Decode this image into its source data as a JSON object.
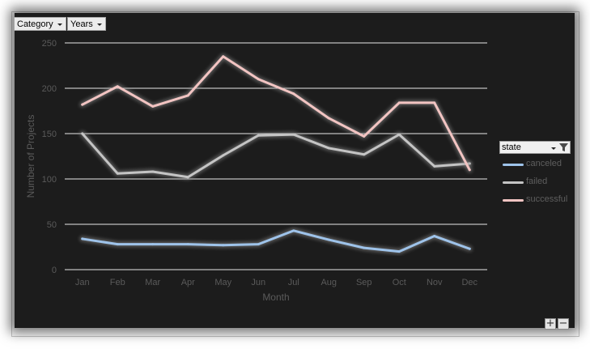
{
  "field_buttons": {
    "category": "Category",
    "years": "Years"
  },
  "legend": {
    "title": "state",
    "icon": "filter-icon"
  },
  "zoom": {
    "plus": "+",
    "minus": "−"
  },
  "chart_data": {
    "type": "line",
    "xlabel": "Month",
    "ylabel": "Number of Projects",
    "ylim": [
      0,
      250
    ],
    "yticks": [
      0,
      50,
      100,
      150,
      200,
      250
    ],
    "grid": true,
    "legend_position": "right",
    "categories": [
      "Jan",
      "Feb",
      "Mar",
      "Apr",
      "May",
      "Jun",
      "Jul",
      "Aug",
      "Sep",
      "Oct",
      "Nov",
      "Dec"
    ],
    "series": [
      {
        "name": "canceled",
        "color": "#9ec3ea",
        "values": [
          34,
          28,
          28,
          28,
          27,
          28,
          43,
          33,
          24,
          20,
          37,
          23
        ]
      },
      {
        "name": "failed",
        "color": "#c4c4c4",
        "values": [
          150,
          106,
          108,
          102,
          126,
          148,
          149,
          134,
          127,
          149,
          114,
          117
        ]
      },
      {
        "name": "successful",
        "color": "#f2c4c2",
        "values": [
          182,
          202,
          180,
          192,
          235,
          210,
          194,
          167,
          147,
          184,
          184,
          110
        ]
      }
    ]
  }
}
